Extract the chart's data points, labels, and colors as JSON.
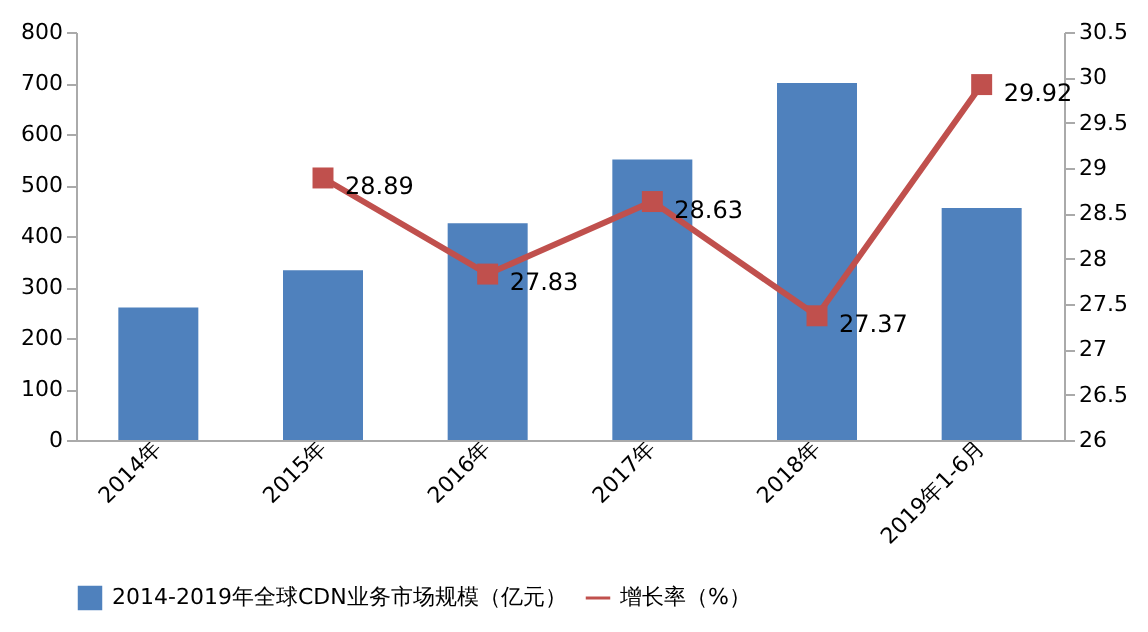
{
  "chart_data": {
    "type": "bar",
    "categories": [
      "2014年",
      "2015年",
      "2016年",
      "2017年",
      "2018年",
      "2019年1-6月"
    ],
    "series": [
      {
        "name": "2014-2019年全球CDN业务市场规模（亿元）",
        "color": "#4f81bd",
        "values": [
          260,
          333,
          425,
          550,
          700,
          455
        ]
      },
      {
        "name": "增长率（%）",
        "type": "line",
        "axis": "y2",
        "color": "#c0504d",
        "marker": "square",
        "values": [
          null,
          28.89,
          27.83,
          28.63,
          27.37,
          29.92
        ],
        "value_labels": [
          null,
          "28.89",
          "27.83",
          "28.63",
          "27.37",
          "29.92"
        ]
      }
    ],
    "ylim": [
      0,
      800
    ],
    "yticks": [
      0,
      100,
      200,
      300,
      400,
      500,
      600,
      700,
      800
    ],
    "y2lim": [
      26,
      30.5
    ],
    "y2ticks": [
      26,
      26.5,
      27,
      27.5,
      28,
      28.5,
      29,
      29.5,
      30,
      30.5
    ],
    "grid": false,
    "legend": "bottom"
  }
}
